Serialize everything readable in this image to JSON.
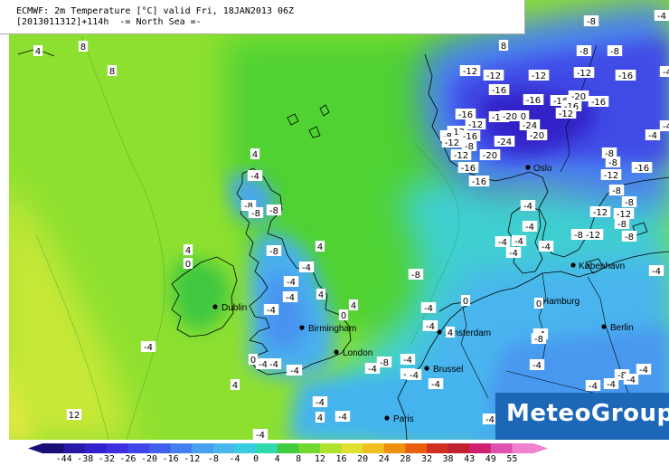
{
  "header": {
    "line1": "ECMWF: 2m Temperature [°C] valid Fri, 18JAN2013 06Z",
    "line2": "[2013011312]+114h  -= North Sea =-"
  },
  "logo": {
    "text": "MeteoGroup",
    "color": "#1c67b6"
  },
  "cities": [
    {
      "name": "Oslo"
    },
    {
      "name": "København"
    },
    {
      "name": "Hamburg"
    },
    {
      "name": "Berlin"
    },
    {
      "name": "Amsterdam"
    },
    {
      "name": "Brussel"
    },
    {
      "name": "Paris"
    },
    {
      "name": "London"
    },
    {
      "name": "Birmingham"
    },
    {
      "name": "Dublin"
    }
  ],
  "temperature_labels": [
    "4",
    "8",
    "8",
    "4",
    "4",
    "4",
    "0",
    "-4",
    "4",
    "-8",
    "-8",
    "-8",
    "-8",
    "-4",
    "-4",
    "-4",
    "4",
    "0",
    "-4",
    "0",
    "-4",
    "-4",
    "0",
    "-4",
    "-8",
    "-4",
    "-4",
    "-4",
    "-4",
    "-8",
    "-4",
    "-4",
    "-4",
    "-4",
    "-4",
    "-4",
    "4",
    "4",
    "-4",
    "12",
    "-4",
    "8",
    "0",
    "4",
    "-4",
    "0",
    "-4",
    "-4",
    "-4",
    "-4",
    "-8",
    "-4",
    "-4",
    "-8",
    "-12",
    "-8",
    "-12",
    "-12",
    "-16",
    "-8",
    "-12",
    "-16",
    "-16",
    "-16",
    "-12",
    "-8",
    "-12",
    "-16",
    "-20",
    "-24",
    "-20",
    "-16",
    "-20",
    "-24",
    "-20",
    "-16",
    "-20",
    "-16",
    "-12",
    "-12",
    "-16",
    "-8",
    "-12",
    "-16",
    "-16",
    "-8",
    "-12",
    "-8",
    "-12",
    "-12",
    "-8",
    "-16",
    "-4",
    "-4",
    "-4",
    "-4",
    "-8",
    "-12",
    "-8",
    "-8",
    "-4",
    "-4",
    "-8",
    "-4",
    "-4",
    "-4",
    "-4",
    "-8",
    "-8",
    "-4"
  ],
  "legend": {
    "values": [
      "-44",
      "-38",
      "-32",
      "-26",
      "-20",
      "-16",
      "-12",
      "-8",
      "-4",
      "0",
      "4",
      "8",
      "12",
      "16",
      "20",
      "24",
      "28",
      "32",
      "38",
      "43",
      "49",
      "55"
    ],
    "colors": [
      "#1a0f78",
      "#2a18a8",
      "#3320cc",
      "#3b2fe0",
      "#3f46ea",
      "#4060ee",
      "#4480f0",
      "#48a0f0",
      "#48b8ec",
      "#38cce0",
      "#30d8b0",
      "#40cc40",
      "#70d830",
      "#b0e030",
      "#e0e030",
      "#f0c020",
      "#f09010",
      "#e86010",
      "#d03020",
      "#c02030",
      "#d02070",
      "#e050b0",
      "#f080d0"
    ]
  }
}
